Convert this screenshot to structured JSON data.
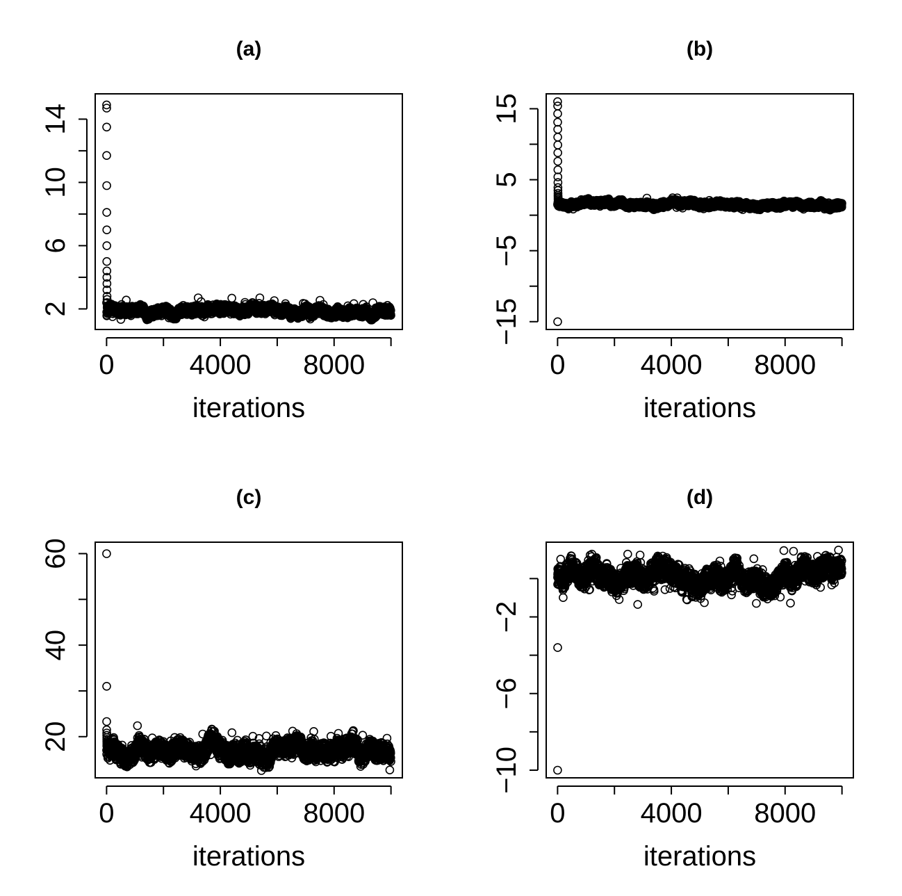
{
  "figure": {
    "background": "#ffffff",
    "ink": "#000000"
  },
  "chart_data": [
    {
      "panel": "a",
      "type": "scatter",
      "title": "(a)",
      "xlabel": "iterations",
      "ylabel": "",
      "xlim": [
        -400,
        10400
      ],
      "ylim": [
        0.7,
        15.6
      ],
      "x_ticks": [
        0,
        2000,
        4000,
        6000,
        8000,
        10000
      ],
      "x_tick_labels": [
        "0",
        "",
        "4000",
        "",
        "8000",
        ""
      ],
      "y_ticks": [
        2,
        4,
        6,
        8,
        10,
        12,
        14
      ],
      "y_tick_labels": [
        "2",
        "",
        "6",
        "",
        "10",
        "",
        "14"
      ],
      "grid": false,
      "burn_in": {
        "x": [
          1,
          2,
          3,
          4,
          5,
          6,
          7,
          8,
          9,
          10,
          11,
          12,
          14,
          16,
          18,
          20,
          25,
          30,
          40,
          60
        ],
        "y": [
          14.9,
          14.7,
          13.5,
          11.7,
          9.8,
          8.1,
          7.0,
          6.0,
          5.0,
          4.4,
          4.0,
          3.6,
          3.2,
          2.8,
          2.6,
          2.4,
          2.2,
          2.1,
          2.0,
          1.9
        ]
      },
      "trace": {
        "n": 10000,
        "level": 1.85,
        "spread": 0.22,
        "min": 1.3,
        "max": 2.7,
        "min_mag": 0.4,
        "max_mag": 0.6
      }
    },
    {
      "panel": "b",
      "type": "scatter",
      "title": "(b)",
      "xlabel": "iterations",
      "ylabel": "",
      "xlim": [
        -400,
        10400
      ],
      "ylim": [
        -16.1,
        17.1
      ],
      "x_ticks": [
        0,
        2000,
        4000,
        6000,
        8000,
        10000
      ],
      "x_tick_labels": [
        "0",
        "",
        "4000",
        "",
        "8000",
        ""
      ],
      "y_ticks": [
        -15,
        -10,
        -5,
        0,
        5,
        10,
        15
      ],
      "y_tick_labels": [
        "−15",
        "",
        "−5",
        "",
        "5",
        "",
        "15"
      ],
      "grid": false,
      "burn_in": {
        "x": [
          1,
          2,
          3,
          4,
          5,
          6,
          7,
          8,
          9,
          10,
          11,
          12,
          13,
          14,
          15,
          16,
          17,
          18,
          19,
          20,
          25,
          30,
          40,
          2
        ],
        "y": [
          16.0,
          15.4,
          14.3,
          13.1,
          12.1,
          11.0,
          9.9,
          8.8,
          7.6,
          6.4,
          5.4,
          4.6,
          3.9,
          3.5,
          3.1,
          2.8,
          2.6,
          2.4,
          2.2,
          2.0,
          1.8,
          1.6,
          1.5,
          -15.0
        ]
      },
      "trace": {
        "n": 10000,
        "level": 1.5,
        "spread": 0.32,
        "min": 0.6,
        "max": 2.6,
        "min_mag": 0.5,
        "max_mag": 0.6
      }
    },
    {
      "panel": "c",
      "type": "scatter",
      "title": "(c)",
      "xlabel": "iterations",
      "ylabel": "",
      "xlim": [
        -400,
        10400
      ],
      "ylim": [
        11,
        62.5
      ],
      "x_ticks": [
        0,
        2000,
        4000,
        6000,
        8000,
        10000
      ],
      "x_tick_labels": [
        "0",
        "",
        "4000",
        "",
        "8000",
        ""
      ],
      "y_ticks": [
        20,
        30,
        40,
        50,
        60
      ],
      "y_tick_labels": [
        "20",
        "",
        "40",
        "",
        "60"
      ],
      "grid": false,
      "burn_in": {
        "x": [
          1,
          2,
          3,
          4,
          5,
          6,
          7,
          8,
          9,
          10,
          12,
          14,
          16,
          18,
          20
        ],
        "y": [
          60.0,
          31.0,
          23.3,
          21.5,
          20.8,
          20.3,
          19.8,
          19.4,
          19.0,
          18.7,
          18.5,
          18.2,
          18.0,
          17.8,
          17.6
        ]
      },
      "trace": {
        "n": 10000,
        "level": 17.0,
        "spread": 1.6,
        "min": 12.6,
        "max": 22.4,
        "min_mag": 2.6,
        "max_mag": 3.6
      }
    },
    {
      "panel": "d",
      "type": "scatter",
      "title": "(d)",
      "xlabel": "iterations",
      "ylabel": "",
      "xlim": [
        -400,
        10400
      ],
      "ylim": [
        -10.4,
        1.9
      ],
      "x_ticks": [
        0,
        2000,
        4000,
        6000,
        8000,
        10000
      ],
      "x_tick_labels": [
        "0",
        "",
        "4000",
        "",
        "8000",
        ""
      ],
      "y_ticks": [
        -10,
        -8,
        -6,
        -4,
        -2,
        0
      ],
      "y_tick_labels": [
        "−10",
        "",
        "−6",
        "",
        "−2",
        ""
      ],
      "grid": false,
      "burn_in": {
        "x": [
          1,
          2,
          3,
          5,
          8
        ],
        "y": [
          -10.0,
          -3.6,
          -0.3,
          0.2,
          0.5
        ]
      },
      "trace": {
        "n": 10000,
        "level": 0.2,
        "spread": 0.45,
        "min": -2.0,
        "max": 1.6,
        "min_mag": 1.2,
        "max_mag": 0.9
      }
    }
  ]
}
